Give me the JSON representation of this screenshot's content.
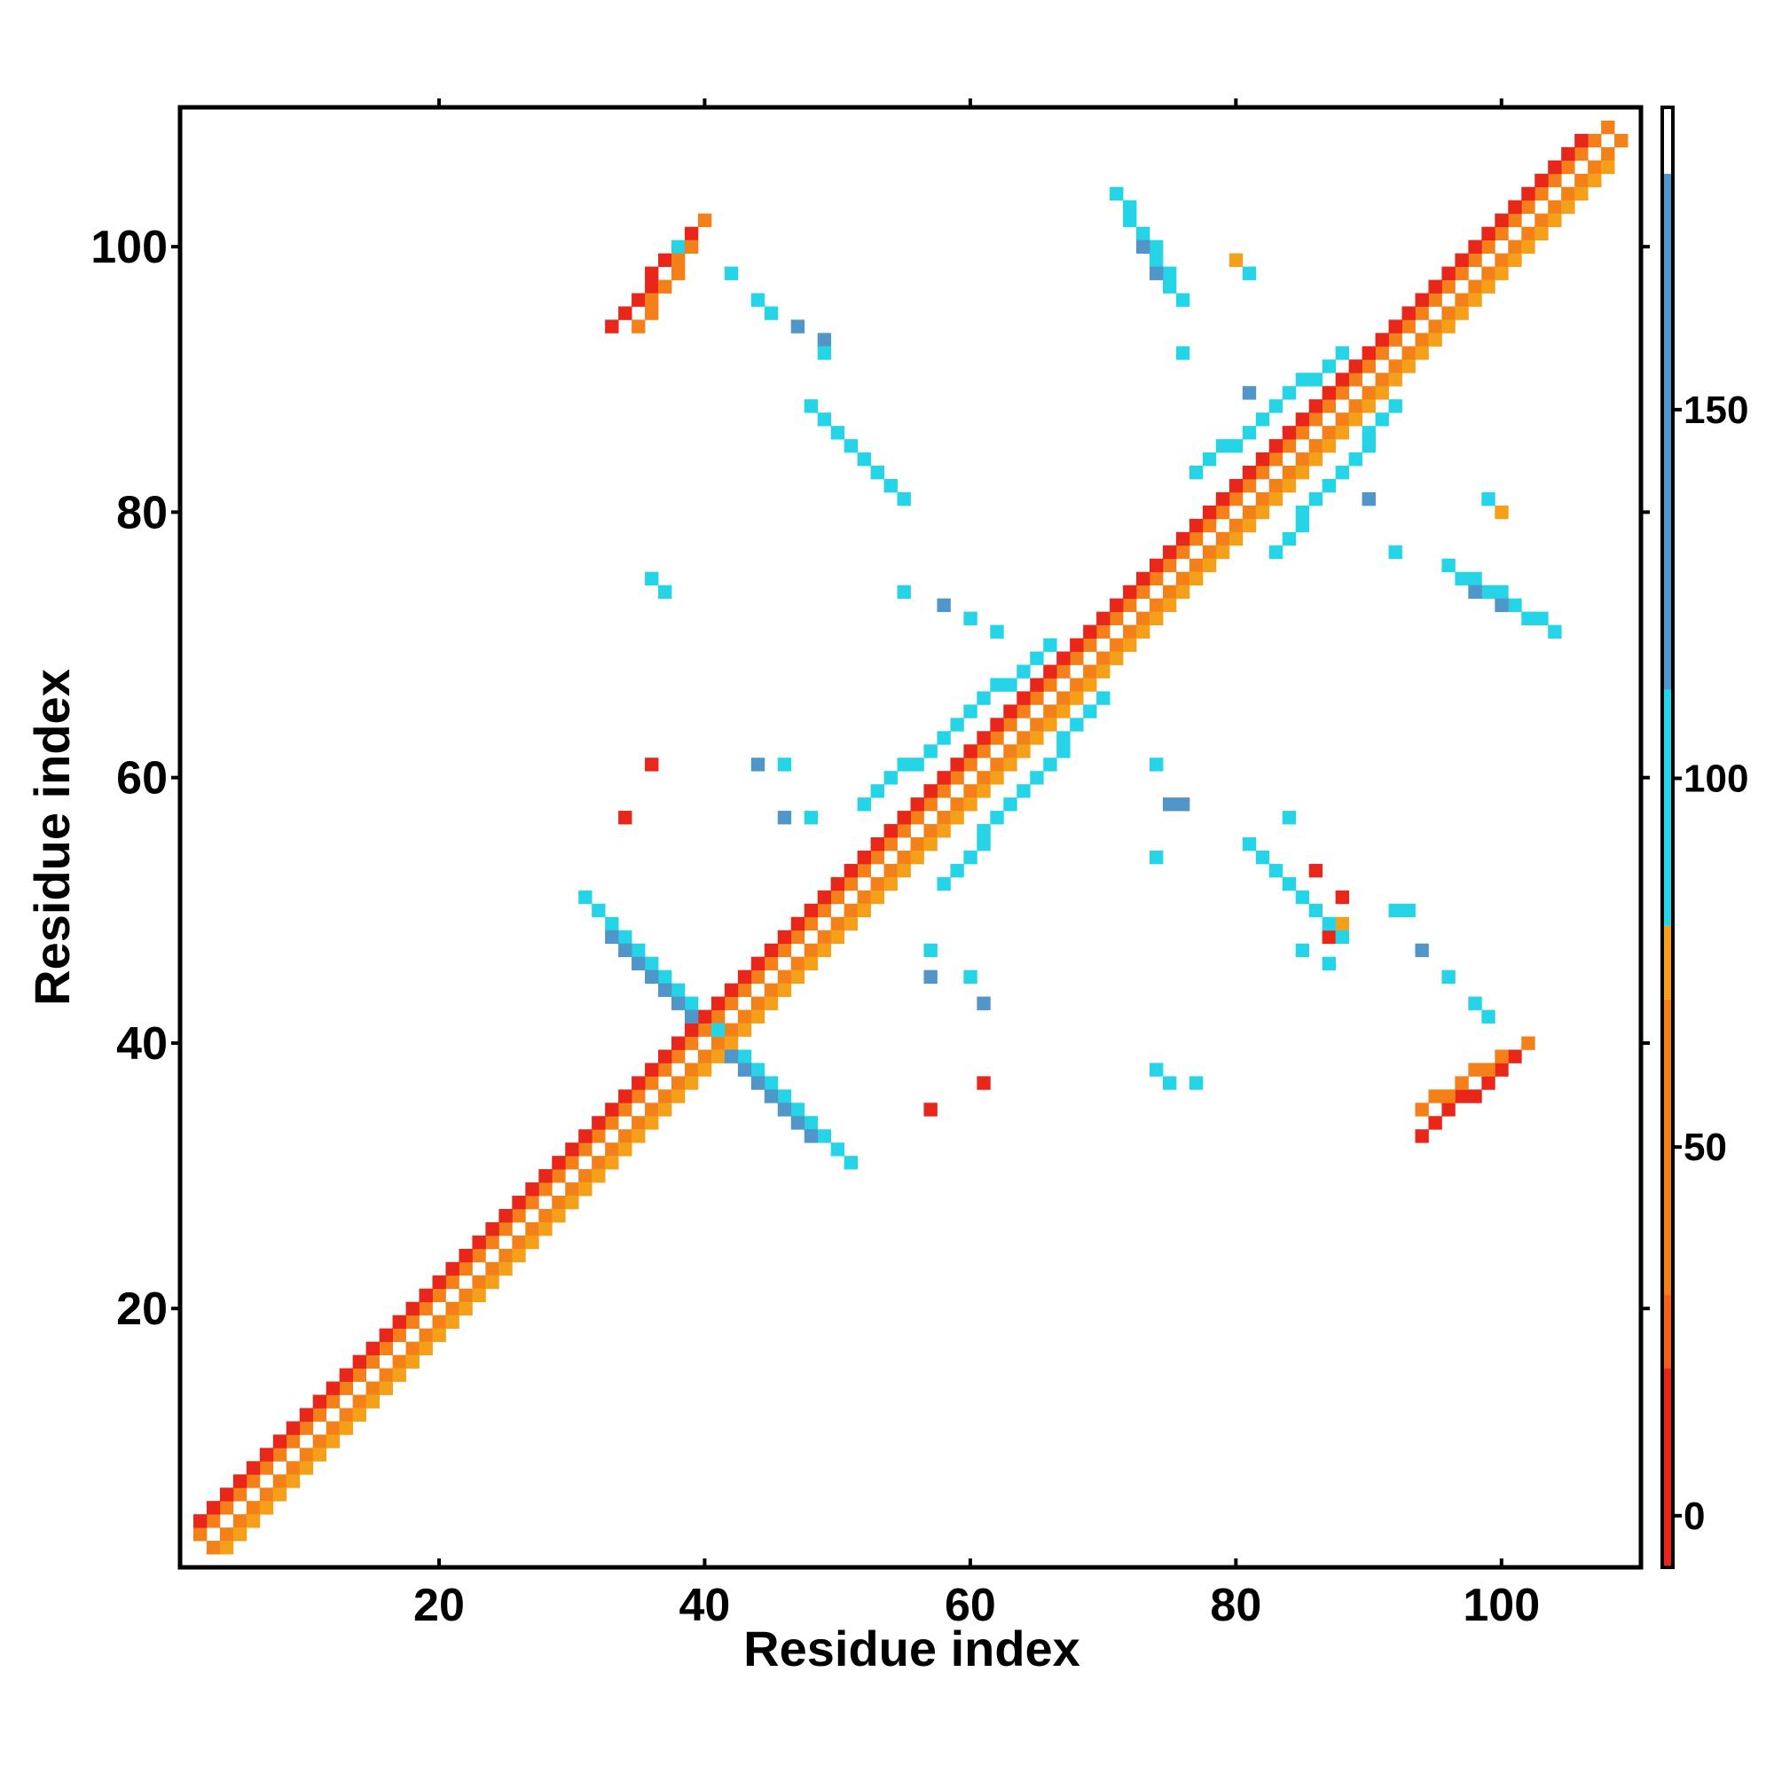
{
  "chart_data": {
    "type": "heatmap",
    "title": "",
    "xlabel": "Residue index",
    "ylabel": "Residue index",
    "xlim": [
      1,
      110
    ],
    "ylim": [
      1,
      110
    ],
    "x_ticks": [
      20,
      40,
      60,
      80,
      100
    ],
    "y_ticks": [
      20,
      40,
      60,
      80,
      100
    ],
    "colorbar": {
      "ticks": [
        0,
        50,
        100,
        150
      ],
      "range": [
        -7,
        191
      ],
      "bands": [
        {
          "from": -7,
          "to": 20,
          "color": "#e8261a"
        },
        {
          "from": 20,
          "to": 30,
          "color": "#f4601a"
        },
        {
          "from": 30,
          "to": 70,
          "color": "#f4801a"
        },
        {
          "from": 70,
          "to": 80,
          "color": "#f4a01a"
        },
        {
          "from": 80,
          "to": 112,
          "color": "#26d4e8"
        },
        {
          "from": 112,
          "to": 182,
          "color": "#5096c8"
        },
        {
          "from": 182,
          "to": 191,
          "color": "#ffffff"
        }
      ]
    },
    "palette": {
      "R": "#e8261a",
      "O": "#f4801a",
      "A": "#f4a01a",
      "C": "#26d4e8",
      "B": "#5096c8",
      "L": "#30b6da"
    },
    "cell_groups": [
      {
        "name": "main diagonal, upper band",
        "color": "O",
        "from": [
          2,
          3
        ],
        "to": [
          108,
          109
        ]
      },
      {
        "name": "main diagonal, lower band",
        "color": "O",
        "from": [
          3,
          2
        ],
        "to": [
          109,
          108
        ]
      },
      {
        "name": "main diagonal, offset band",
        "color": "R",
        "from": [
          2,
          4
        ],
        "to": [
          106,
          108
        ]
      },
      {
        "name": "main diagonal, offset band 2",
        "color": "A",
        "from": [
          4,
          2
        ],
        "to": [
          108,
          106
        ]
      },
      {
        "name": "beta sheet 31-41 antiparallel",
        "color": "C",
        "from": [
          31,
          51
        ],
        "to": [
          41,
          41
        ]
      },
      {
        "name": "beta sheet 31-41 core",
        "color": "B",
        "from": [
          33,
          48
        ],
        "to": [
          39,
          42
        ]
      },
      {
        "name": "beta sheet 41-51 antiparallel",
        "color": "C",
        "from": [
          41,
          41
        ],
        "to": [
          51,
          31
        ]
      },
      {
        "name": "beta sheet 41-51 core",
        "color": "B",
        "from": [
          42,
          39
        ],
        "to": [
          48,
          33
        ]
      },
      {
        "name": "strand 33-40 vs 94-102",
        "color": "R",
        "from": [
          33,
          94
        ],
        "to": [
          39,
          101
        ]
      },
      {
        "name": "strand 33-40 vs 94-102 edge",
        "color": "O",
        "from": [
          35,
          94
        ],
        "to": [
          40,
          102
        ]
      },
      {
        "name": "strand 94-102 vs 33-40",
        "color": "R",
        "from": [
          94,
          33
        ],
        "to": [
          101,
          39
        ]
      },
      {
        "name": "strand 94-102 vs 33-40 edge",
        "color": "O",
        "from": [
          94,
          35
        ],
        "to": [
          102,
          40
        ]
      },
      {
        "name": "cluster 72-77 vs 96-104",
        "color": "C",
        "from": [
          71,
          104
        ],
        "to": [
          76,
          96
        ]
      },
      {
        "name": "cluster 72-77 vs 96-104 core",
        "color": "B",
        "from": [
          72,
          102
        ],
        "to": [
          75,
          97
        ]
      },
      {
        "name": "cluster 96-104 vs 72-77",
        "color": "C",
        "from": [
          96,
          76
        ],
        "to": [
          104,
          71
        ]
      },
      {
        "name": "cluster 96-104 vs 72-77 core",
        "color": "B",
        "from": [
          97,
          75
        ],
        "to": [
          102,
          72
        ]
      },
      {
        "name": "cluster 48-56 vs 80-89",
        "color": "C",
        "from": [
          48,
          88
        ],
        "to": [
          55,
          81
        ]
      },
      {
        "name": "cluster 80-89 vs 48-56",
        "color": "C",
        "from": [
          81,
          55
        ],
        "to": [
          88,
          48
        ]
      },
      {
        "name": "cluster 52-68 near diagonal",
        "color": "C",
        "from": [
          52,
          58
        ],
        "to": [
          66,
          70
        ]
      },
      {
        "name": "cluster 58-70 near diagonal",
        "color": "C",
        "from": [
          58,
          52
        ],
        "to": [
          70,
          66
        ]
      },
      {
        "name": "cluster 77-90 near diagonal",
        "color": "C",
        "from": [
          77,
          83
        ],
        "to": [
          88,
          92
        ]
      },
      {
        "name": "cluster 83-92 near diagonal",
        "color": "C",
        "from": [
          83,
          77
        ],
        "to": [
          92,
          88
        ]
      },
      {
        "name": "cluster 72-77 vs 79-82",
        "color": "R",
        "from": [
          72,
          73
        ],
        "to": [
          76,
          77
        ]
      }
    ],
    "sparse_cells": [
      [
        38,
        100,
        "C"
      ],
      [
        42,
        98,
        "C"
      ],
      [
        44,
        96,
        "C"
      ],
      [
        45,
        95,
        "C"
      ],
      [
        47,
        94,
        "B"
      ],
      [
        49,
        93,
        "B"
      ],
      [
        49,
        92,
        "C"
      ],
      [
        80,
        99,
        "A"
      ],
      [
        81,
        98,
        "C"
      ],
      [
        76,
        92,
        "C"
      ],
      [
        81,
        89,
        "B"
      ],
      [
        90,
        81,
        "B"
      ],
      [
        99,
        81,
        "C"
      ],
      [
        100,
        80,
        "A"
      ],
      [
        92,
        77,
        "C"
      ],
      [
        37,
        74,
        "C"
      ],
      [
        36,
        75,
        "C"
      ],
      [
        55,
        74,
        "C"
      ],
      [
        58,
        73,
        "B"
      ],
      [
        60,
        72,
        "C"
      ],
      [
        62,
        71,
        "C"
      ],
      [
        36,
        61,
        "R"
      ],
      [
        34,
        57,
        "R"
      ],
      [
        44,
        61,
        "B"
      ],
      [
        46,
        61,
        "C"
      ],
      [
        46,
        57,
        "B"
      ],
      [
        48,
        57,
        "C"
      ],
      [
        74,
        61,
        "C"
      ],
      [
        75,
        58,
        "B"
      ],
      [
        76,
        58,
        "B"
      ],
      [
        74,
        54,
        "C"
      ],
      [
        84,
        57,
        "C"
      ],
      [
        86,
        53,
        "R"
      ],
      [
        88,
        51,
        "R"
      ],
      [
        57,
        47,
        "C"
      ],
      [
        57,
        45,
        "B"
      ],
      [
        60,
        45,
        "C"
      ],
      [
        61,
        43,
        "B"
      ],
      [
        61,
        37,
        "R"
      ],
      [
        57,
        35,
        "R"
      ],
      [
        74,
        38,
        "C"
      ],
      [
        75,
        37,
        "C"
      ],
      [
        77,
        37,
        "C"
      ],
      [
        92,
        50,
        "C"
      ],
      [
        93,
        50,
        "C"
      ],
      [
        94,
        47,
        "B"
      ],
      [
        96,
        45,
        "C"
      ],
      [
        98,
        43,
        "C"
      ],
      [
        99,
        42,
        "C"
      ],
      [
        88,
        49,
        "A"
      ],
      [
        87,
        48,
        "R"
      ],
      [
        85,
        47,
        "C"
      ],
      [
        87,
        46,
        "C"
      ]
    ]
  }
}
